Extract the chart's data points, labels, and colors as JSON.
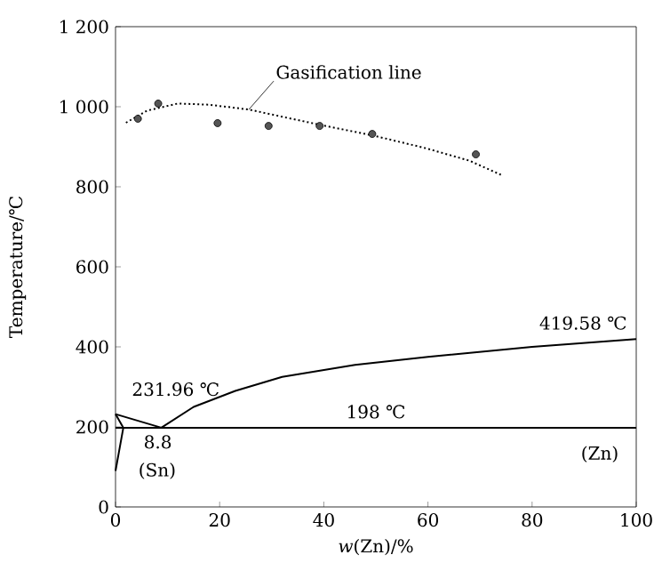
{
  "chart_data": {
    "type": "line",
    "xlabel": "*w*(Zn)/%",
    "ylabel": "Temperature/℃",
    "xlim": [
      0,
      100
    ],
    "ylim": [
      0,
      1200
    ],
    "xticks": [
      0,
      20,
      40,
      60,
      80,
      100
    ],
    "yticks": [
      0,
      200,
      400,
      600,
      800,
      {
        "value": 1000,
        "label": "1 000"
      },
      {
        "value": 1200,
        "label": "1 200"
      }
    ],
    "grid": false,
    "marker": "circle",
    "series": [
      {
        "type": "scatter",
        "color": "#555555",
        "x": [
          4.3,
          8.2,
          19.6,
          29.4,
          39.2,
          49.3,
          69.2
        ],
        "values": [
          970,
          1008,
          959,
          952,
          952,
          932,
          881
        ]
      },
      {
        "marker": "none",
        "line_style": "dotted",
        "color": "#000000",
        "x": [
          2,
          6,
          12,
          18,
          25.6,
          32,
          39.2,
          49.5,
          59.7,
          68,
          74
        ],
        "values": [
          960,
          990,
          1008,
          1005,
          993,
          975,
          955,
          928,
          896,
          865,
          830
        ]
      },
      {
        "marker": "none",
        "color": "#000000",
        "x": [
          0,
          8.8,
          15,
          23,
          32,
          46,
          60,
          80,
          100
        ],
        "values": [
          231.96,
          198,
          250,
          290,
          325,
          355,
          375,
          400,
          419.58
        ]
      },
      {
        "marker": "none",
        "color": "#000000",
        "x": [
          0,
          100
        ],
        "values": [
          198,
          198
        ]
      },
      {
        "marker": "none",
        "color": "#000000",
        "x": [
          0,
          1.5,
          0
        ],
        "values": [
          231.96,
          198,
          90
        ]
      }
    ],
    "annotations": [
      {
        "text": "Gasification line",
        "x": 25.6,
        "y": 993
      },
      {
        "text": "419.58 ℃",
        "x": 100,
        "y": 419.58
      },
      {
        "text": "231.96 ℃",
        "x": 0,
        "y": 231.96
      },
      {
        "text": "198 ℃",
        "x": 50,
        "y": 198
      },
      {
        "text": "8.8",
        "x": 8.8,
        "y": 198
      },
      "(Sn)",
      "(Zn)"
    ]
  }
}
